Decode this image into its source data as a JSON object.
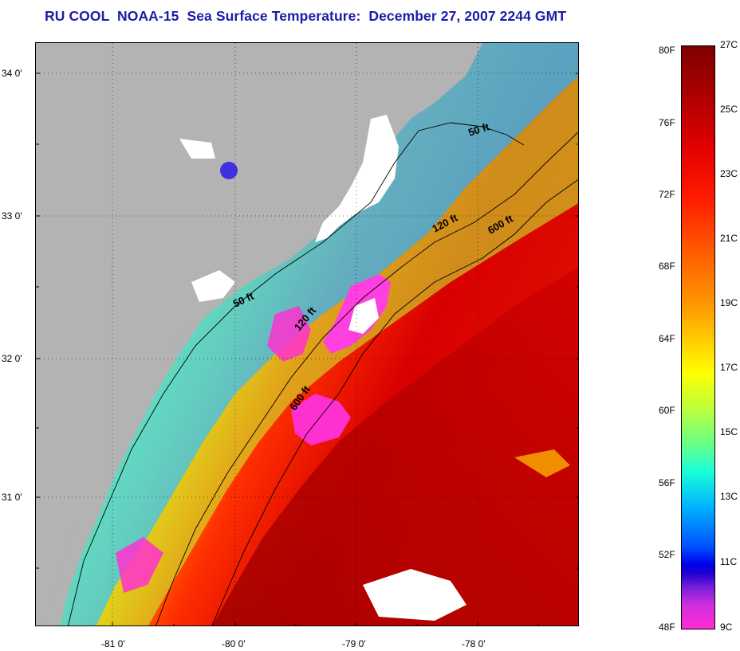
{
  "title": "RU COOL  NOAA-15  Sea Surface Temperature:  December 27, 2007 2244 GMT",
  "lat_labels": [
    "34 0'",
    "33 0'",
    "32 0'",
    "31 0'"
  ],
  "lon_labels": [
    "-81 0'",
    "-80 0'",
    "-79 0'",
    "-78 0'"
  ],
  "isobath_labels": [
    {
      "text": "50 ft",
      "depth": "50 ft"
    },
    {
      "text": "120 ft",
      "depth": "120 ft"
    },
    {
      "text": "600 ft",
      "depth": "600 ft"
    },
    {
      "text": "50 ft",
      "depth": "50 ft"
    },
    {
      "text": "120 ft",
      "depth": "120 ft"
    },
    {
      "text": "600 ft",
      "depth": "600 ft"
    }
  ],
  "colorbar": {
    "fahrenheit_labels": [
      "80F",
      "76F",
      "72F",
      "68F",
      "64F",
      "60F",
      "56F",
      "52F",
      "48F"
    ],
    "celsius_labels": [
      "27C",
      "25C",
      "23C",
      "21C",
      "19C",
      "17C",
      "15C",
      "13C",
      "11C",
      "9C"
    ]
  },
  "colors": {
    "title": "#1c1ca8",
    "land": "#b3b3b3",
    "cloud": "#ffffff"
  }
}
